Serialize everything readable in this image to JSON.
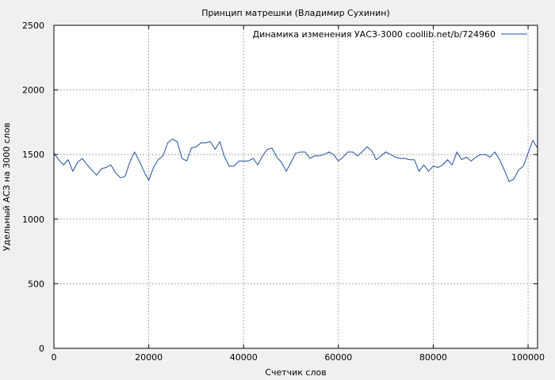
{
  "chart_data": {
    "type": "line",
    "title": "Принцип матрешки (Владимир Сухинин)",
    "xlabel": "Счетчик слов",
    "ylabel": "Удельный АСЗ на 3000 слов",
    "xlim": [
      0,
      102000
    ],
    "ylim": [
      0,
      2500
    ],
    "xticks": [
      0,
      20000,
      40000,
      60000,
      80000,
      100000
    ],
    "yticks": [
      0,
      500,
      1000,
      1500,
      2000,
      2500
    ],
    "grid": true,
    "legend_position": "top-right",
    "colors": {
      "background": "#f0f0f0",
      "plot_area": "#ffffff",
      "line": "#1f4fa0",
      "grid": "#999999"
    },
    "series": [
      {
        "name": "Динамика изменения УАСЗ-3000 coollib.net/b/724960",
        "x": [
          0,
          1000,
          2000,
          3000,
          4000,
          5000,
          6000,
          7000,
          8000,
          9000,
          10000,
          11000,
          12000,
          13000,
          14000,
          15000,
          16000,
          17000,
          18000,
          19000,
          20000,
          21000,
          22000,
          23000,
          24000,
          25000,
          26000,
          27000,
          28000,
          29000,
          30000,
          31000,
          32000,
          33000,
          34000,
          35000,
          36000,
          37000,
          38000,
          39000,
          40000,
          41000,
          42000,
          43000,
          44000,
          45000,
          46000,
          47000,
          48000,
          49000,
          50000,
          51000,
          52000,
          53000,
          54000,
          55000,
          56000,
          57000,
          58000,
          59000,
          60000,
          61000,
          62000,
          63000,
          64000,
          65000,
          66000,
          67000,
          68000,
          69000,
          70000,
          71000,
          72000,
          73000,
          74000,
          75000,
          76000,
          77000,
          78000,
          79000,
          80000,
          81000,
          82000,
          83000,
          84000,
          85000,
          86000,
          87000,
          88000,
          89000,
          90000,
          91000,
          92000,
          93000,
          94000,
          95000,
          96000,
          97000,
          98000,
          99000,
          100000,
          101000,
          102000
        ],
        "y": [
          1510,
          1460,
          1420,
          1460,
          1370,
          1440,
          1470,
          1420,
          1380,
          1340,
          1390,
          1400,
          1420,
          1360,
          1320,
          1330,
          1440,
          1520,
          1450,
          1370,
          1300,
          1400,
          1460,
          1490,
          1590,
          1620,
          1600,
          1470,
          1450,
          1550,
          1560,
          1590,
          1590,
          1600,
          1540,
          1600,
          1480,
          1410,
          1410,
          1450,
          1450,
          1450,
          1470,
          1420,
          1490,
          1540,
          1550,
          1480,
          1440,
          1370,
          1440,
          1510,
          1520,
          1520,
          1470,
          1490,
          1490,
          1500,
          1520,
          1500,
          1450,
          1480,
          1520,
          1520,
          1490,
          1520,
          1560,
          1530,
          1460,
          1490,
          1520,
          1500,
          1480,
          1470,
          1470,
          1460,
          1460,
          1370,
          1420,
          1370,
          1410,
          1400,
          1420,
          1460,
          1420,
          1520,
          1460,
          1480,
          1450,
          1480,
          1500,
          1500,
          1480,
          1520,
          1460,
          1380,
          1290,
          1310,
          1380,
          1410,
          1510,
          1610,
          1550
        ]
      }
    ]
  }
}
